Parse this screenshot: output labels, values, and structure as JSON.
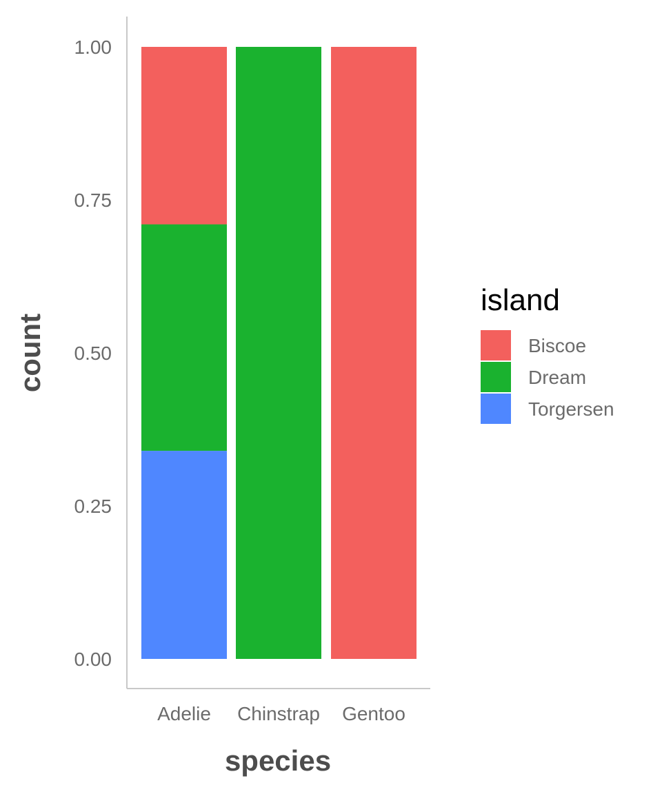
{
  "chart_data": {
    "type": "bar",
    "stacked": true,
    "position": "fill",
    "categories": [
      "Adelie",
      "Chinstrap",
      "Gentoo"
    ],
    "series": [
      {
        "name": "Torgersen",
        "color": "#4f87ff",
        "values": [
          0.34,
          0.0,
          0.0
        ]
      },
      {
        "name": "Dream",
        "color": "#1ab22f",
        "values": [
          0.37,
          1.0,
          0.0
        ]
      },
      {
        "name": "Biscoe",
        "color": "#f3605d",
        "values": [
          0.29,
          0.0,
          1.0
        ]
      }
    ],
    "stack_order_bottom_to_top": [
      "Torgersen",
      "Dream",
      "Biscoe"
    ],
    "xlabel": "species",
    "ylabel": "count",
    "ylim": [
      0,
      1
    ],
    "yticks": [
      "0.00",
      "0.25",
      "0.50",
      "0.75",
      "1.00"
    ],
    "ytick_values": [
      0,
      0.25,
      0.5,
      0.75,
      1.0
    ],
    "grid": false,
    "legend": {
      "title": "island",
      "placement": "right",
      "entries": [
        "Biscoe",
        "Dream",
        "Torgersen"
      ]
    }
  }
}
